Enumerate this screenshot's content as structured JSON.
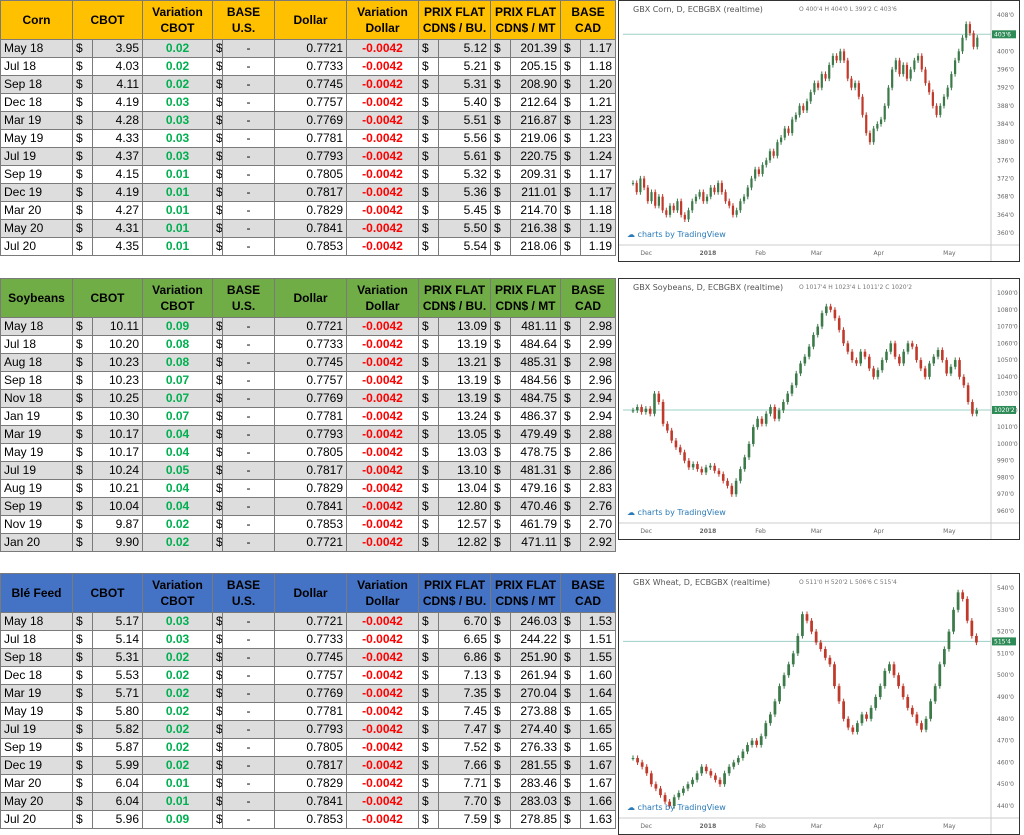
{
  "sections": [
    {
      "name": "Corn",
      "header_color": "#ffc000",
      "headers": [
        "Corn",
        "CBOT",
        "Variation CBOT",
        "BASE U.S.",
        "Dollar",
        "Variation Dollar",
        "PRIX FLAT CDN$ / BU.",
        "PRIX FLAT CDN$ / MT",
        "BASE CAD"
      ],
      "rows": [
        [
          "May 18",
          "$",
          "3.95",
          "0.02",
          "$",
          "-",
          "0.7721",
          "-0.0042",
          "$",
          "5.12",
          "$",
          "201.39",
          "$",
          "1.17"
        ],
        [
          "Jul 18",
          "$",
          "4.03",
          "0.02",
          "$",
          "-",
          "0.7733",
          "-0.0042",
          "$",
          "5.21",
          "$",
          "205.15",
          "$",
          "1.18"
        ],
        [
          "Sep 18",
          "$",
          "4.11",
          "0.02",
          "$",
          "-",
          "0.7745",
          "-0.0042",
          "$",
          "5.31",
          "$",
          "208.90",
          "$",
          "1.20"
        ],
        [
          "Dec 18",
          "$",
          "4.19",
          "0.03",
          "$",
          "-",
          "0.7757",
          "-0.0042",
          "$",
          "5.40",
          "$",
          "212.64",
          "$",
          "1.21"
        ],
        [
          "Mar 19",
          "$",
          "4.28",
          "0.03",
          "$",
          "-",
          "0.7769",
          "-0.0042",
          "$",
          "5.51",
          "$",
          "216.87",
          "$",
          "1.23"
        ],
        [
          "May 19",
          "$",
          "4.33",
          "0.03",
          "$",
          "-",
          "0.7781",
          "-0.0042",
          "$",
          "5.56",
          "$",
          "219.06",
          "$",
          "1.23"
        ],
        [
          "Jul 19",
          "$",
          "4.37",
          "0.03",
          "$",
          "-",
          "0.7793",
          "-0.0042",
          "$",
          "5.61",
          "$",
          "220.75",
          "$",
          "1.24"
        ],
        [
          "Sep 19",
          "$",
          "4.15",
          "0.01",
          "$",
          "-",
          "0.7805",
          "-0.0042",
          "$",
          "5.32",
          "$",
          "209.31",
          "$",
          "1.17"
        ],
        [
          "Dec 19",
          "$",
          "4.19",
          "0.01",
          "$",
          "-",
          "0.7817",
          "-0.0042",
          "$",
          "5.36",
          "$",
          "211.01",
          "$",
          "1.17"
        ],
        [
          "Mar 20",
          "$",
          "4.27",
          "0.01",
          "$",
          "-",
          "0.7829",
          "-0.0042",
          "$",
          "5.45",
          "$",
          "214.70",
          "$",
          "1.18"
        ],
        [
          "May 20",
          "$",
          "4.31",
          "0.01",
          "$",
          "-",
          "0.7841",
          "-0.0042",
          "$",
          "5.50",
          "$",
          "216.38",
          "$",
          "1.19"
        ],
        [
          "Jul 20",
          "$",
          "4.35",
          "0.01",
          "$",
          "-",
          "0.7853",
          "-0.0042",
          "$",
          "5.54",
          "$",
          "218.06",
          "$",
          "1.19"
        ]
      ],
      "chart": {
        "title": "GBX Corn, D, ECBGBX (realtime)",
        "ohlc": "O 400'4 H 404'0 L 399'2 C 403'6",
        "last": "403'6",
        "yticks": [
          "408'0",
          "404'0",
          "400'0",
          "396'0",
          "392'0",
          "388'0",
          "384'0",
          "380'0",
          "376'0",
          "372'0",
          "368'0",
          "364'0",
          "360'0"
        ],
        "xticks": [
          "Dec",
          "2018",
          "Feb",
          "Mar",
          "Apr",
          "May"
        ],
        "ymin": 360,
        "ymax": 408,
        "closes": [
          371,
          369,
          372,
          370,
          367,
          369,
          366,
          368,
          365,
          364,
          366,
          365,
          367,
          364,
          363,
          365,
          367,
          368,
          369,
          367,
          368,
          370,
          369,
          371,
          369,
          367,
          366,
          364,
          365,
          367,
          368,
          370,
          372,
          374,
          373,
          375,
          376,
          378,
          377,
          380,
          381,
          383,
          382,
          385,
          386,
          388,
          387,
          389,
          391,
          393,
          392,
          395,
          394,
          397,
          399,
          398,
          400,
          398,
          394,
          392,
          393,
          390,
          386,
          382,
          380,
          383,
          384,
          385,
          388,
          392,
          396,
          398,
          395,
          397,
          394,
          396,
          398,
          399,
          396,
          393,
          391,
          388,
          386,
          388,
          390,
          392,
          395,
          398,
          400,
          403,
          406,
          404,
          401,
          403
        ],
        "last_value": 403.75
      }
    },
    {
      "name": "Soybeans",
      "header_color": "#70ad47",
      "headers": [
        "Soybeans",
        "CBOT",
        "Variation CBOT",
        "BASE U.S.",
        "Dollar",
        "Variation Dollar",
        "PRIX FLAT CDN$ / BU.",
        "PRIX FLAT CDN$ / MT",
        "BASE CAD"
      ],
      "rows": [
        [
          "May 18",
          "$",
          "10.11",
          "0.09",
          "$",
          "-",
          "0.7721",
          "-0.0042",
          "$",
          "13.09",
          "$",
          "481.11",
          "$",
          "2.98"
        ],
        [
          "Jul 18",
          "$",
          "10.20",
          "0.08",
          "$",
          "-",
          "0.7733",
          "-0.0042",
          "$",
          "13.19",
          "$",
          "484.64",
          "$",
          "2.99"
        ],
        [
          "Aug 18",
          "$",
          "10.23",
          "0.08",
          "$",
          "-",
          "0.7745",
          "-0.0042",
          "$",
          "13.21",
          "$",
          "485.31",
          "$",
          "2.98"
        ],
        [
          "Sep 18",
          "$",
          "10.23",
          "0.07",
          "$",
          "-",
          "0.7757",
          "-0.0042",
          "$",
          "13.19",
          "$",
          "484.56",
          "$",
          "2.96"
        ],
        [
          "Nov 18",
          "$",
          "10.25",
          "0.07",
          "$",
          "-",
          "0.7769",
          "-0.0042",
          "$",
          "13.19",
          "$",
          "484.75",
          "$",
          "2.94"
        ],
        [
          "Jan 19",
          "$",
          "10.30",
          "0.07",
          "$",
          "-",
          "0.7781",
          "-0.0042",
          "$",
          "13.24",
          "$",
          "486.37",
          "$",
          "2.94"
        ],
        [
          "Mar 19",
          "$",
          "10.17",
          "0.04",
          "$",
          "-",
          "0.7793",
          "-0.0042",
          "$",
          "13.05",
          "$",
          "479.49",
          "$",
          "2.88"
        ],
        [
          "May 19",
          "$",
          "10.17",
          "0.04",
          "$",
          "-",
          "0.7805",
          "-0.0042",
          "$",
          "13.03",
          "$",
          "478.75",
          "$",
          "2.86"
        ],
        [
          "Jul 19",
          "$",
          "10.24",
          "0.05",
          "$",
          "-",
          "0.7817",
          "-0.0042",
          "$",
          "13.10",
          "$",
          "481.31",
          "$",
          "2.86"
        ],
        [
          "Aug 19",
          "$",
          "10.21",
          "0.04",
          "$",
          "-",
          "0.7829",
          "-0.0042",
          "$",
          "13.04",
          "$",
          "479.16",
          "$",
          "2.83"
        ],
        [
          "Sep 19",
          "$",
          "10.04",
          "0.04",
          "$",
          "-",
          "0.7841",
          "-0.0042",
          "$",
          "12.80",
          "$",
          "470.46",
          "$",
          "2.76"
        ],
        [
          "Nov 19",
          "$",
          "9.87",
          "0.02",
          "$",
          "-",
          "0.7853",
          "-0.0042",
          "$",
          "12.57",
          "$",
          "461.79",
          "$",
          "2.70"
        ],
        [
          "Jan 20",
          "$",
          "9.90",
          "0.02",
          "$",
          "-",
          "0.7721",
          "-0.0042",
          "$",
          "12.82",
          "$",
          "471.11",
          "$",
          "2.92"
        ]
      ],
      "chart": {
        "title": "GBX Soybeans, D, ECBGBX (realtime)",
        "ohlc": "O 1017'4 H 1023'4 L 1011'2 C 1020'2",
        "last": "1020'2",
        "yticks": [
          "1090'0",
          "1080'0",
          "1070'0",
          "1060'0",
          "1050'0",
          "1040'0",
          "1030'0",
          "1020'0",
          "1010'0",
          "1000'0",
          "990'0",
          "980'0",
          "970'0",
          "960'0"
        ],
        "xticks": [
          "Dec",
          "2018",
          "Feb",
          "Mar",
          "Apr",
          "May"
        ],
        "ymin": 960,
        "ymax": 1090,
        "closes": [
          1020,
          1022,
          1019,
          1021,
          1018,
          1030,
          1025,
          1012,
          1008,
          1002,
          998,
          995,
          990,
          986,
          988,
          985,
          983,
          986,
          987,
          984,
          982,
          978,
          975,
          970,
          978,
          985,
          992,
          1000,
          1010,
          1015,
          1012,
          1018,
          1022,
          1015,
          1020,
          1025,
          1030,
          1035,
          1042,
          1048,
          1052,
          1058,
          1065,
          1070,
          1078,
          1082,
          1080,
          1075,
          1068,
          1060,
          1055,
          1050,
          1048,
          1055,
          1052,
          1045,
          1040,
          1044,
          1050,
          1055,
          1060,
          1052,
          1048,
          1055,
          1060,
          1058,
          1050,
          1045,
          1040,
          1048,
          1052,
          1056,
          1050,
          1042,
          1046,
          1050,
          1040,
          1035,
          1025,
          1018,
          1020
        ],
        "last_value": 1020.25
      }
    },
    {
      "name": "Blé Feed",
      "header_color": "#4472c4",
      "headers": [
        "Blé Feed",
        "CBOT",
        "Variation CBOT",
        "BASE U.S.",
        "Dollar",
        "Variation Dollar",
        "PRIX FLAT CDN$ / BU.",
        "PRIX FLAT CDN$ / MT",
        "BASE CAD"
      ],
      "rows": [
        [
          "May 18",
          "$",
          "5.17",
          "0.03",
          "$",
          "-",
          "0.7721",
          "-0.0042",
          "$",
          "6.70",
          "$",
          "246.03",
          "$",
          "1.53"
        ],
        [
          "Jul 18",
          "$",
          "5.14",
          "0.03",
          "$",
          "-",
          "0.7733",
          "-0.0042",
          "$",
          "6.65",
          "$",
          "244.22",
          "$",
          "1.51"
        ],
        [
          "Sep 18",
          "$",
          "5.31",
          "0.02",
          "$",
          "-",
          "0.7745",
          "-0.0042",
          "$",
          "6.86",
          "$",
          "251.90",
          "$",
          "1.55"
        ],
        [
          "Dec 18",
          "$",
          "5.53",
          "0.02",
          "$",
          "-",
          "0.7757",
          "-0.0042",
          "$",
          "7.13",
          "$",
          "261.94",
          "$",
          "1.60"
        ],
        [
          "Mar 19",
          "$",
          "5.71",
          "0.02",
          "$",
          "-",
          "0.7769",
          "-0.0042",
          "$",
          "7.35",
          "$",
          "270.04",
          "$",
          "1.64"
        ],
        [
          "May 19",
          "$",
          "5.80",
          "0.02",
          "$",
          "-",
          "0.7781",
          "-0.0042",
          "$",
          "7.45",
          "$",
          "273.88",
          "$",
          "1.65"
        ],
        [
          "Jul 19",
          "$",
          "5.82",
          "0.02",
          "$",
          "-",
          "0.7793",
          "-0.0042",
          "$",
          "7.47",
          "$",
          "274.40",
          "$",
          "1.65"
        ],
        [
          "Sep 19",
          "$",
          "5.87",
          "0.02",
          "$",
          "-",
          "0.7805",
          "-0.0042",
          "$",
          "7.52",
          "$",
          "276.33",
          "$",
          "1.65"
        ],
        [
          "Dec 19",
          "$",
          "5.99",
          "0.02",
          "$",
          "-",
          "0.7817",
          "-0.0042",
          "$",
          "7.66",
          "$",
          "281.55",
          "$",
          "1.67"
        ],
        [
          "Mar 20",
          "$",
          "6.04",
          "0.01",
          "$",
          "-",
          "0.7829",
          "-0.0042",
          "$",
          "7.71",
          "$",
          "283.46",
          "$",
          "1.67"
        ],
        [
          "May 20",
          "$",
          "6.04",
          "0.01",
          "$",
          "-",
          "0.7841",
          "-0.0042",
          "$",
          "7.70",
          "$",
          "283.03",
          "$",
          "1.66"
        ],
        [
          "Jul 20",
          "$",
          "5.96",
          "0.09",
          "$",
          "-",
          "0.7853",
          "-0.0042",
          "$",
          "7.59",
          "$",
          "278.85",
          "$",
          "1.63"
        ]
      ],
      "chart": {
        "title": "GBX Wheat, D, ECBGBX (realtime)",
        "ohlc": "O 511'0 H 520'2 L 506'6 C 515'4",
        "last": "515'4",
        "yticks": [
          "540'0",
          "530'0",
          "520'0",
          "510'0",
          "500'0",
          "490'0",
          "480'0",
          "470'0",
          "460'0",
          "450'0",
          "440'0"
        ],
        "xticks": [
          "Dec",
          "2018",
          "Feb",
          "Mar",
          "Apr",
          "May"
        ],
        "ymin": 440,
        "ymax": 540,
        "closes": [
          462,
          460,
          458,
          455,
          450,
          448,
          445,
          442,
          440,
          444,
          446,
          448,
          450,
          452,
          455,
          458,
          456,
          454,
          452,
          450,
          455,
          458,
          460,
          462,
          465,
          468,
          470,
          468,
          472,
          478,
          482,
          488,
          495,
          500,
          505,
          510,
          518,
          528,
          525,
          520,
          515,
          512,
          508,
          505,
          495,
          488,
          480,
          476,
          474,
          478,
          482,
          480,
          485,
          490,
          495,
          502,
          505,
          500,
          495,
          490,
          485,
          482,
          478,
          475,
          480,
          488,
          495,
          505,
          512,
          520,
          530,
          538,
          535,
          525,
          518,
          515
        ],
        "last_value": 515.5
      }
    }
  ]
}
